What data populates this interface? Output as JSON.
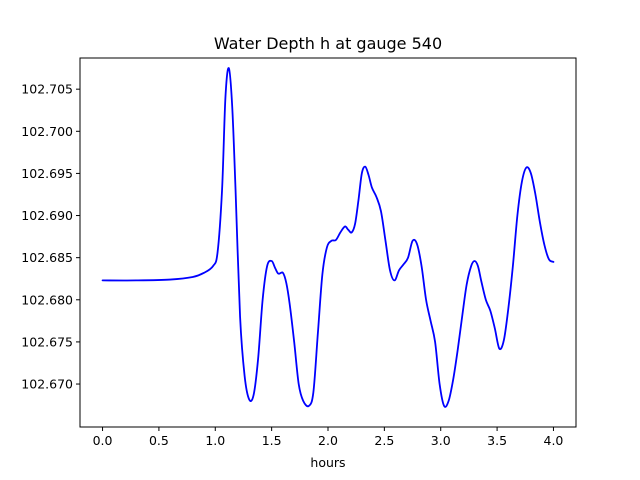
{
  "chart_data": {
    "type": "line",
    "title": "Water Depth h at gauge 540",
    "xlabel": "hours",
    "ylabel": "",
    "xlim": [
      -0.2,
      4.2
    ],
    "ylim": [
      102.6649,
      102.7087
    ],
    "xticks": [
      0.0,
      0.5,
      1.0,
      1.5,
      2.0,
      2.5,
      3.0,
      3.5,
      4.0
    ],
    "xtick_labels": [
      "0.0",
      "0.5",
      "1.0",
      "1.5",
      "2.0",
      "2.5",
      "3.0",
      "3.5",
      "4.0"
    ],
    "yticks": [
      102.67,
      102.675,
      102.68,
      102.685,
      102.69,
      102.695,
      102.7,
      102.705
    ],
    "ytick_labels": [
      "102.670",
      "102.675",
      "102.680",
      "102.685",
      "102.690",
      "102.695",
      "102.700",
      "102.705"
    ],
    "grid": false,
    "series": [
      {
        "name": "",
        "color": "#0000ff",
        "x": [
          0.0,
          0.3,
          0.6,
          0.8,
          0.9,
          0.98,
          1.02,
          1.06,
          1.09,
          1.12,
          1.15,
          1.18,
          1.22,
          1.26,
          1.3,
          1.34,
          1.38,
          1.42,
          1.46,
          1.5,
          1.53,
          1.56,
          1.6,
          1.63,
          1.66,
          1.7,
          1.74,
          1.78,
          1.83,
          1.87,
          1.91,
          1.95,
          1.99,
          2.03,
          2.07,
          2.11,
          2.15,
          2.18,
          2.21,
          2.24,
          2.27,
          2.3,
          2.33,
          2.36,
          2.39,
          2.43,
          2.47,
          2.51,
          2.55,
          2.59,
          2.63,
          2.67,
          2.71,
          2.75,
          2.79,
          2.83,
          2.87,
          2.91,
          2.95,
          2.99,
          3.03,
          3.07,
          3.11,
          3.15,
          3.19,
          3.23,
          3.27,
          3.3,
          3.33,
          3.36,
          3.4,
          3.44,
          3.48,
          3.52,
          3.56,
          3.6,
          3.64,
          3.68,
          3.72,
          3.76,
          3.8,
          3.84,
          3.88,
          3.92,
          3.96,
          4.0
        ],
        "y": [
          102.6823,
          102.6823,
          102.6824,
          102.6827,
          102.6832,
          102.684,
          102.6856,
          102.693,
          102.704,
          102.7075,
          102.703,
          102.693,
          102.678,
          102.671,
          102.6682,
          102.6687,
          102.673,
          102.68,
          102.684,
          102.6846,
          102.6838,
          102.6831,
          102.6832,
          102.682,
          102.6795,
          102.675,
          102.67,
          102.668,
          102.6674,
          102.669,
          102.676,
          102.683,
          102.6862,
          102.687,
          102.6871,
          102.688,
          102.6887,
          102.6883,
          102.688,
          102.689,
          102.6918,
          102.695,
          102.6958,
          102.6948,
          102.6933,
          102.6922,
          102.6905,
          102.687,
          102.6835,
          102.6823,
          102.6835,
          102.6842,
          102.685,
          102.687,
          102.6866,
          102.684,
          102.68,
          102.6775,
          102.675,
          102.67,
          102.6674,
          102.668,
          102.6705,
          102.674,
          102.678,
          102.6818,
          102.684,
          102.6846,
          102.684,
          102.6822,
          102.68,
          102.6787,
          102.6766,
          102.6742,
          102.6752,
          102.679,
          102.684,
          102.69,
          102.694,
          102.6957,
          102.695,
          102.6925,
          102.6892,
          102.6865,
          102.6848,
          102.6845
        ]
      }
    ]
  }
}
